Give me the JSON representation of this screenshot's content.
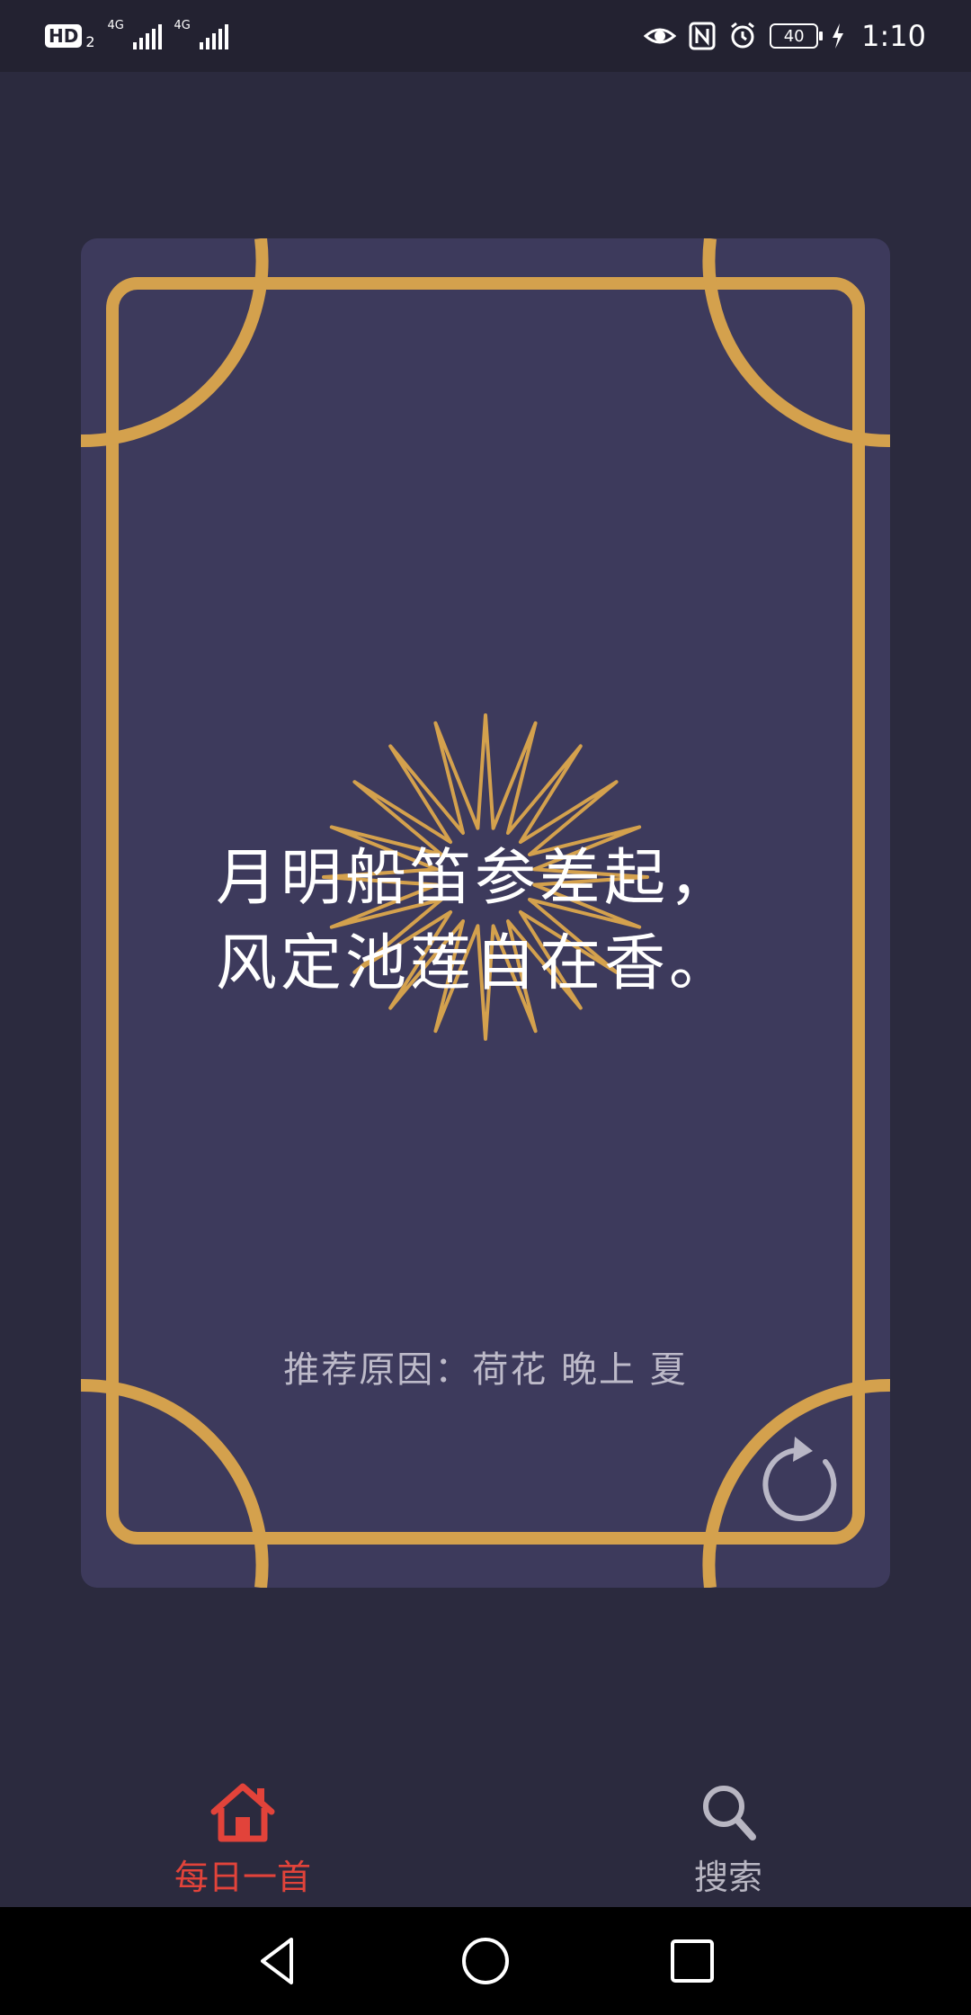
{
  "status_bar": {
    "hd_label": "HD",
    "hd_sub": "2",
    "signal1_label": "4G",
    "signal2_label": "4G",
    "battery_level": "40",
    "time": "1:10",
    "icons": [
      "eye-icon",
      "nfc-icon",
      "alarm-icon",
      "battery-icon",
      "charging-icon"
    ]
  },
  "card": {
    "poem_lines": [
      "月明船笛参差起，",
      "风定池莲自在香。"
    ],
    "reason": "推荐原因：荷花  晚上  夏",
    "refresh_icon": "refresh-icon",
    "colors": {
      "background": "#3d3a5c",
      "frame": "#d4a14d"
    }
  },
  "bottom_nav": {
    "items": [
      {
        "label": "每日一首",
        "icon": "home-icon",
        "active": true
      },
      {
        "label": "搜索",
        "icon": "search-icon",
        "active": false
      }
    ],
    "active_color": "#e2433a",
    "inactive_color": "#b8b6c2"
  },
  "system_nav": {
    "icons": [
      "back-icon",
      "home-circle-icon",
      "recents-icon"
    ]
  }
}
